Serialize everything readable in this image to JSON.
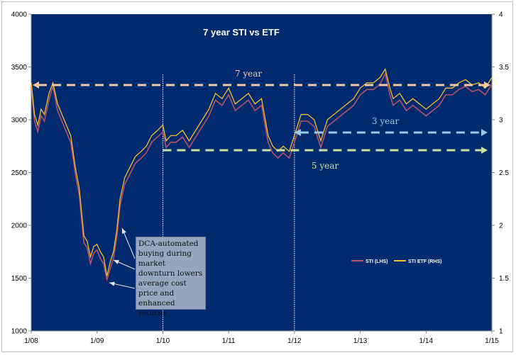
{
  "chart_data": {
    "type": "line",
    "title": "7 year STI vs ETF",
    "xlabel": "",
    "ylabel": "",
    "x_ticks": [
      "1/08",
      "1/09",
      "1/10",
      "1/11",
      "1/12",
      "1/13",
      "1/14",
      "1/15"
    ],
    "xlim": [
      2008,
      2015
    ],
    "y_left": {
      "ylim": [
        1000,
        4000
      ],
      "ticks": [
        "1000",
        "1500",
        "2000",
        "2500",
        "3000",
        "3500",
        "4000"
      ]
    },
    "y_right": {
      "ylim": [
        1,
        4
      ],
      "ticks": [
        "1",
        "1.5",
        "2",
        "2.5",
        "3",
        "3.5",
        "4"
      ]
    },
    "grid": false,
    "legend": "bottom-right",
    "x": [
      2008.0,
      2008.05,
      2008.1,
      2008.15,
      2008.2,
      2008.27,
      2008.33,
      2008.4,
      2008.5,
      2008.6,
      2008.67,
      2008.73,
      2008.8,
      2008.85,
      2008.9,
      2008.95,
      2009.0,
      2009.05,
      2009.1,
      2009.15,
      2009.2,
      2009.25,
      2009.3,
      2009.35,
      2009.42,
      2009.5,
      2009.58,
      2009.67,
      2009.75,
      2009.83,
      2009.92,
      2010.0,
      2010.05,
      2010.12,
      2010.2,
      2010.3,
      2010.4,
      2010.5,
      2010.6,
      2010.7,
      2010.8,
      2010.9,
      2011.0,
      2011.1,
      2011.2,
      2011.3,
      2011.4,
      2011.5,
      2011.6,
      2011.67,
      2011.75,
      2011.83,
      2011.92,
      2012.0,
      2012.1,
      2012.2,
      2012.3,
      2012.4,
      2012.5,
      2012.6,
      2012.7,
      2012.8,
      2012.9,
      2013.0,
      2013.1,
      2013.2,
      2013.3,
      2013.38,
      2013.45,
      2013.5,
      2013.6,
      2013.7,
      2013.8,
      2013.9,
      2014.0,
      2014.1,
      2014.2,
      2014.3,
      2014.4,
      2014.5,
      2014.6,
      2014.7,
      2014.8,
      2014.9,
      2015.0
    ],
    "series": [
      {
        "name": "STI (LHS)",
        "color": "#b5526a",
        "values": [
          3330,
          3000,
          2900,
          3050,
          3000,
          3200,
          3330,
          3100,
          2950,
          2800,
          2500,
          2300,
          1850,
          1800,
          1650,
          1750,
          1780,
          1700,
          1650,
          1500,
          1600,
          1700,
          1900,
          2200,
          2400,
          2500,
          2600,
          2650,
          2700,
          2800,
          2850,
          2900,
          2750,
          2800,
          2800,
          2850,
          2750,
          2850,
          2950,
          3050,
          3200,
          3150,
          3250,
          3100,
          3150,
          3200,
          3100,
          3150,
          2800,
          2700,
          2650,
          2700,
          2650,
          2800,
          3000,
          3000,
          2950,
          2750,
          2950,
          3000,
          3050,
          3100,
          3150,
          3250,
          3300,
          3300,
          3350,
          3450,
          3250,
          3150,
          3200,
          3100,
          3150,
          3100,
          3050,
          3100,
          3150,
          3250,
          3250,
          3300,
          3330,
          3280,
          3300,
          3250,
          3350
        ]
      },
      {
        "name": "STI ETF (RHS)",
        "color": "#f2c12e",
        "values": [
          3.35,
          3.05,
          2.95,
          3.1,
          3.05,
          3.25,
          3.35,
          3.15,
          3.0,
          2.85,
          2.55,
          2.35,
          1.9,
          1.85,
          1.7,
          1.8,
          1.82,
          1.75,
          1.7,
          1.52,
          1.65,
          1.75,
          1.95,
          2.25,
          2.45,
          2.55,
          2.65,
          2.7,
          2.75,
          2.85,
          2.9,
          2.95,
          2.8,
          2.85,
          2.85,
          2.9,
          2.8,
          2.9,
          3.0,
          3.1,
          3.25,
          3.2,
          3.3,
          3.15,
          3.2,
          3.25,
          3.15,
          3.2,
          2.85,
          2.75,
          2.7,
          2.75,
          2.7,
          2.85,
          3.05,
          3.05,
          3.0,
          2.8,
          3.0,
          3.05,
          3.1,
          3.15,
          3.2,
          3.3,
          3.35,
          3.35,
          3.4,
          3.48,
          3.3,
          3.2,
          3.25,
          3.15,
          3.2,
          3.15,
          3.1,
          3.15,
          3.2,
          3.3,
          3.3,
          3.35,
          3.38,
          3.33,
          3.35,
          3.3,
          3.4
        ]
      }
    ],
    "annotations": {
      "seven_year": "7 year",
      "five_year": "5 year",
      "three_year": "3 year",
      "callout": "DCA-automated buying during market downturn lowers average cost price and enhanced returns"
    },
    "colors": {
      "background": "#022a6e",
      "seven": "#f6c7a4",
      "three": "#97cbe6",
      "five": "#c9e3a2"
    }
  }
}
